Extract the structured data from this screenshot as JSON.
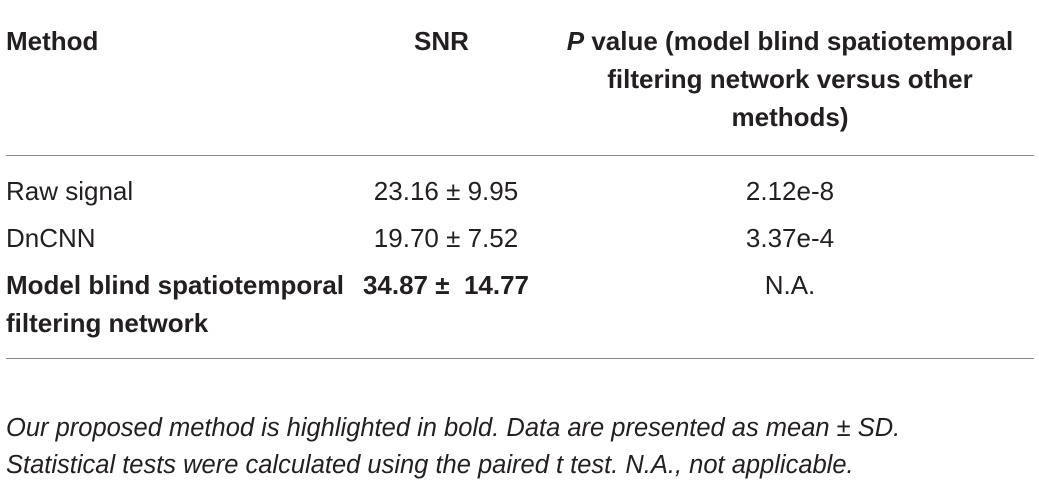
{
  "table": {
    "headers": {
      "method": "Method",
      "snr": "SNR",
      "p_italic": "P",
      "p_rest": " value (model blind spatiotemporal filtering network versus other methods)"
    },
    "rows": [
      {
        "method": "Raw signal",
        "snr": "23.16 ± 9.95",
        "p_value": "2.12e-8",
        "bold": false
      },
      {
        "method": "DnCNN",
        "snr": "19.70 ± 7.52",
        "p_value": "3.37e-4",
        "bold": false
      },
      {
        "method": "Model blind spatiotemporal filtering network",
        "snr": "34.87 ±  14.77",
        "p_value": "N.A.",
        "bold": true
      }
    ]
  },
  "footnote": {
    "line1": "Our proposed method is highlighted in bold. Data are presented as mean ± SD.",
    "line2": "Statistical tests were calculated using the paired t test. N.A., not applicable."
  }
}
